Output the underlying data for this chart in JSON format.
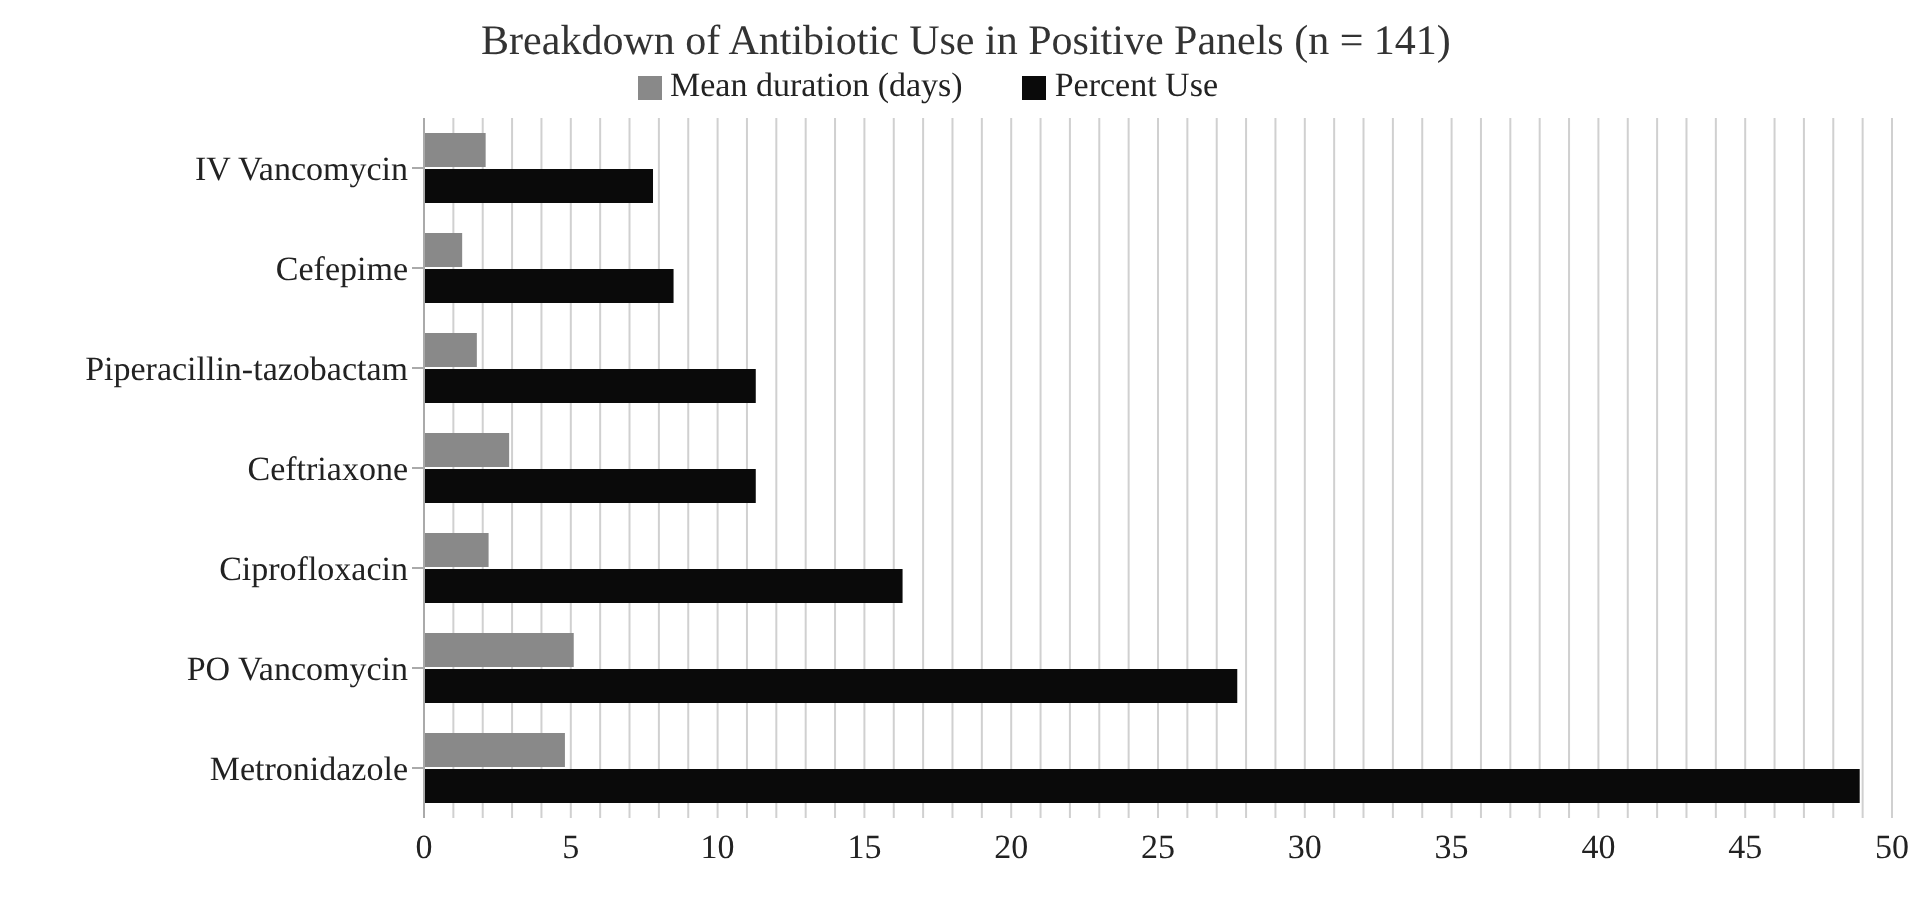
{
  "chart_data": {
    "type": "bar",
    "orientation": "horizontal",
    "title": "Breakdown of Antibiotic Use in Positive Panels (n = 141)",
    "categories": [
      "IV Vancomycin",
      "Cefepime",
      "Piperacillin-tazobactam",
      "Ceftriaxone",
      "Ciprofloxacin",
      "PO Vancomycin",
      "Metronidazole"
    ],
    "series": [
      {
        "name": "Mean duration (days)",
        "color": "#898989",
        "values": [
          2.1,
          1.3,
          1.8,
          2.9,
          2.2,
          5.1,
          4.8
        ]
      },
      {
        "name": "Percent Use",
        "color": "#0a0a0a",
        "values": [
          7.8,
          8.5,
          11.3,
          11.3,
          16.3,
          27.7,
          48.9
        ]
      }
    ],
    "xlim": [
      0,
      50
    ],
    "xticks": [
      0,
      {
        "value": 1,
        "label": null
      },
      {
        "value": 2,
        "label": null
      },
      {
        "value": 3,
        "label": null
      },
      {
        "value": 4,
        "label": null
      },
      5,
      {
        "value": 6,
        "label": null
      },
      {
        "value": 7,
        "label": null
      },
      {
        "value": 8,
        "label": null
      },
      {
        "value": 9,
        "label": null
      },
      10,
      {
        "value": 11,
        "label": null
      },
      {
        "value": 12,
        "label": null
      },
      {
        "value": 13,
        "label": null
      },
      {
        "value": 14,
        "label": null
      },
      15,
      {
        "value": 16,
        "label": null
      },
      {
        "value": 17,
        "label": null
      },
      {
        "value": 18,
        "label": null
      },
      {
        "value": 19,
        "label": null
      },
      20,
      {
        "value": 21,
        "label": null
      },
      {
        "value": 22,
        "label": null
      },
      {
        "value": 23,
        "label": null
      },
      {
        "value": 24,
        "label": null
      },
      25,
      {
        "value": 26,
        "label": null
      },
      {
        "value": 27,
        "label": null
      },
      {
        "value": 28,
        "label": null
      },
      {
        "value": 29,
        "label": null
      },
      30,
      {
        "value": 31,
        "label": null
      },
      {
        "value": 32,
        "label": null
      },
      {
        "value": 33,
        "label": null
      },
      {
        "value": 34,
        "label": null
      },
      35,
      {
        "value": 36,
        "label": null
      },
      {
        "value": 37,
        "label": null
      },
      {
        "value": 38,
        "label": null
      },
      {
        "value": 39,
        "label": null
      },
      40,
      {
        "value": 41,
        "label": null
      },
      {
        "value": 42,
        "label": null
      },
      {
        "value": 43,
        "label": null
      },
      {
        "value": 44,
        "label": null
      },
      45,
      {
        "value": 46,
        "label": null
      },
      {
        "value": 47,
        "label": null
      },
      {
        "value": 48,
        "label": null
      },
      {
        "value": 49,
        "label": null
      },
      50
    ],
    "grid": "x",
    "legend": "top"
  }
}
